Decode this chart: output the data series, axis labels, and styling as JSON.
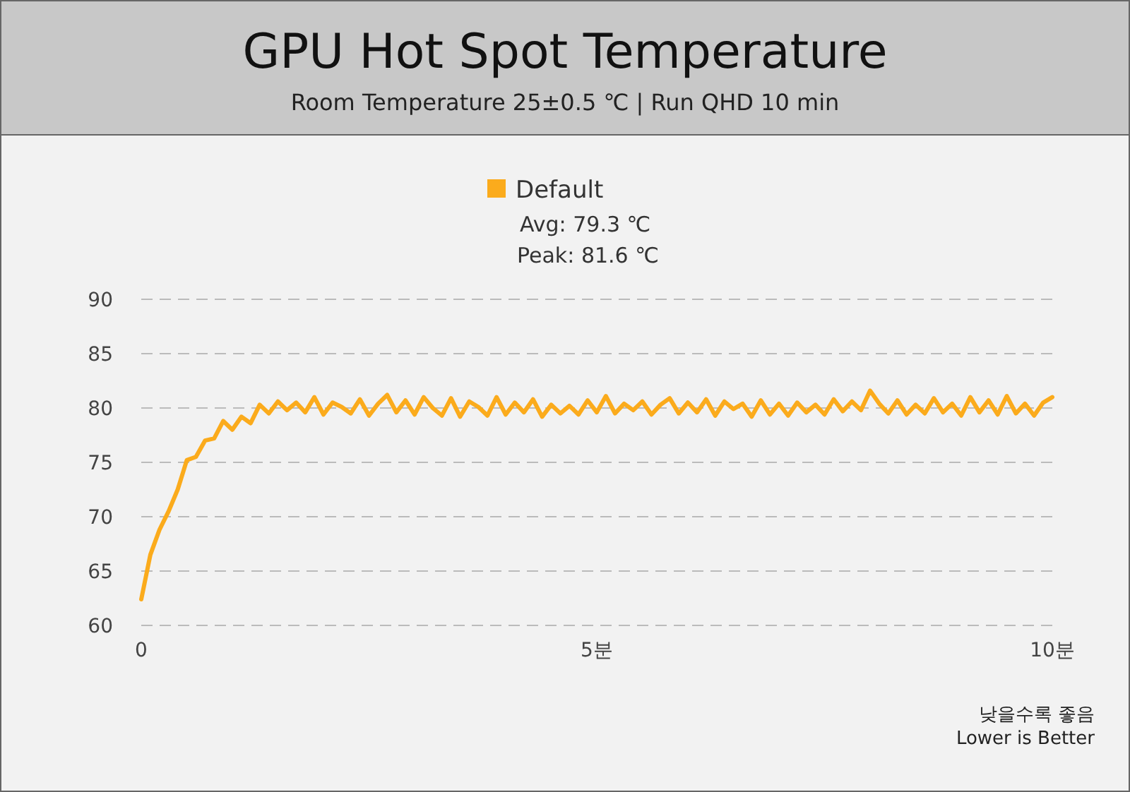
{
  "chart_data": {
    "type": "line",
    "title": "GPU Hot Spot Temperature",
    "subtitle": "Room Temperature 25±0.5 ℃  | Run QHD 10 min",
    "x": [
      0,
      0.1,
      0.2,
      0.3,
      0.4,
      0.5,
      0.6,
      0.7,
      0.8,
      0.9,
      1,
      1.1,
      1.2,
      1.3,
      1.4,
      1.5,
      1.6,
      1.7,
      1.8,
      1.9,
      2,
      2.1,
      2.2,
      2.3,
      2.4,
      2.5,
      2.6,
      2.7,
      2.8,
      2.9,
      3,
      3.1,
      3.2,
      3.3,
      3.4,
      3.5,
      3.6,
      3.7,
      3.8,
      3.9,
      4,
      4.1,
      4.2,
      4.3,
      4.4,
      4.5,
      4.6,
      4.7,
      4.8,
      4.9,
      5,
      5.1,
      5.2,
      5.3,
      5.4,
      5.5,
      5.6,
      5.7,
      5.8,
      5.9,
      6,
      6.1,
      6.2,
      6.3,
      6.4,
      6.5,
      6.6,
      6.7,
      6.8,
      6.9,
      7,
      7.1,
      7.2,
      7.3,
      7.4,
      7.5,
      7.6,
      7.7,
      7.8,
      7.9,
      8,
      8.1,
      8.2,
      8.3,
      8.4,
      8.5,
      8.6,
      8.7,
      8.8,
      8.9,
      9,
      9.1,
      9.2,
      9.3,
      9.4,
      9.5,
      9.6,
      9.7,
      9.8,
      9.9,
      10
    ],
    "series": [
      {
        "name": "Default",
        "color": "#fbab1c",
        "values": [
          62.4,
          66.5,
          68.8,
          70.5,
          72.5,
          75.2,
          75.5,
          77,
          77.2,
          78.8,
          78,
          79.2,
          78.6,
          80.3,
          79.5,
          80.6,
          79.8,
          80.5,
          79.6,
          81,
          79.4,
          80.5,
          80.1,
          79.5,
          80.8,
          79.3,
          80.4,
          81.2,
          79.6,
          80.7,
          79.4,
          81,
          80,
          79.3,
          80.9,
          79.2,
          80.6,
          80.1,
          79.3,
          81,
          79.4,
          80.5,
          79.6,
          80.8,
          79.2,
          80.3,
          79.5,
          80.2,
          79.4,
          80.7,
          79.6,
          81.1,
          79.5,
          80.4,
          79.8,
          80.6,
          79.4,
          80.3,
          80.9,
          79.5,
          80.5,
          79.6,
          80.8,
          79.3,
          80.6,
          79.9,
          80.4,
          79.2,
          80.7,
          79.4,
          80.4,
          79.3,
          80.5,
          79.6,
          80.3,
          79.4,
          80.8,
          79.7,
          80.6,
          79.8,
          81.6,
          80.4,
          79.5,
          80.7,
          79.4,
          80.3,
          79.5,
          80.9,
          79.6,
          80.4,
          79.3,
          81,
          79.6,
          80.7,
          79.4,
          81.1,
          79.5,
          80.4,
          79.3,
          80.5,
          81
        ]
      }
    ],
    "xlim": [
      0,
      10
    ],
    "xticks": [
      0,
      {
        "value": 5,
        "label": "5분"
      },
      {
        "value": 10,
        "label": "10분"
      }
    ],
    "ylim": [
      60,
      90
    ],
    "yticks": [
      60,
      65,
      70,
      75,
      80,
      85,
      90
    ],
    "grid": "y",
    "legend": "top",
    "line_style": "solid",
    "marker": "none",
    "annotations": [
      "Avg: 79.3 ℃",
      "Peak: 81.6 ℃",
      "낮을수록 좋음",
      "Lower is Better"
    ]
  }
}
